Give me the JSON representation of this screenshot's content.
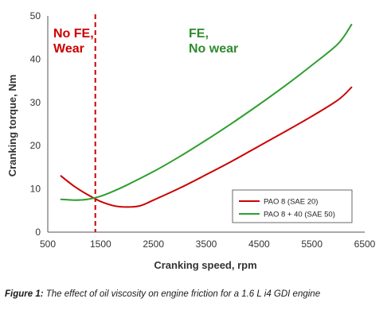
{
  "chart_data": {
    "type": "line",
    "xlabel": "Cranking speed, rpm",
    "ylabel": "Cranking torque, Nm",
    "xlim": [
      500,
      6500
    ],
    "ylim": [
      0,
      50
    ],
    "xticks": [
      500,
      1500,
      2500,
      3500,
      4500,
      5500,
      6500
    ],
    "yticks": [
      0,
      10,
      20,
      30,
      40,
      50
    ],
    "grid": false,
    "legend": "bottom-right",
    "series": [
      {
        "name": "PAO 8 (SAE 20)",
        "color": "#cc0000",
        "x": [
          750,
          1000,
          1250,
          1500,
          1750,
          2000,
          2250,
          2500,
          3000,
          3500,
          4000,
          4500,
          5000,
          5500,
          6000,
          6250
        ],
        "y": [
          13.0,
          10.6,
          8.7,
          7.1,
          6.1,
          5.8,
          6.1,
          7.4,
          10.2,
          13.3,
          16.5,
          19.9,
          23.3,
          26.8,
          30.6,
          33.5
        ]
      },
      {
        "name": "PAO 8 + 40 (SAE 50)",
        "color": "#2e9e2e",
        "x": [
          750,
          1000,
          1250,
          1500,
          1750,
          2000,
          2500,
          3000,
          3500,
          4000,
          4500,
          5000,
          5500,
          6000,
          6250
        ],
        "y": [
          7.6,
          7.4,
          7.6,
          8.3,
          9.5,
          10.9,
          14.0,
          17.5,
          21.3,
          25.3,
          29.5,
          33.9,
          38.6,
          43.6,
          48.0
        ]
      }
    ],
    "reference_line": {
      "x": 1400,
      "color": "#cc0000",
      "style": "dashed"
    },
    "annotations": [
      {
        "lines": [
          "No FE,",
          "Wear"
        ],
        "color": "#cc0000"
      },
      {
        "lines": [
          "FE,",
          "No wear"
        ],
        "color": "#2e8b2e"
      }
    ]
  },
  "caption": {
    "label": "Figure 1:",
    "text": " The effect of oil viscosity on engine friction for a 1.6 L i4 GDI engine"
  }
}
